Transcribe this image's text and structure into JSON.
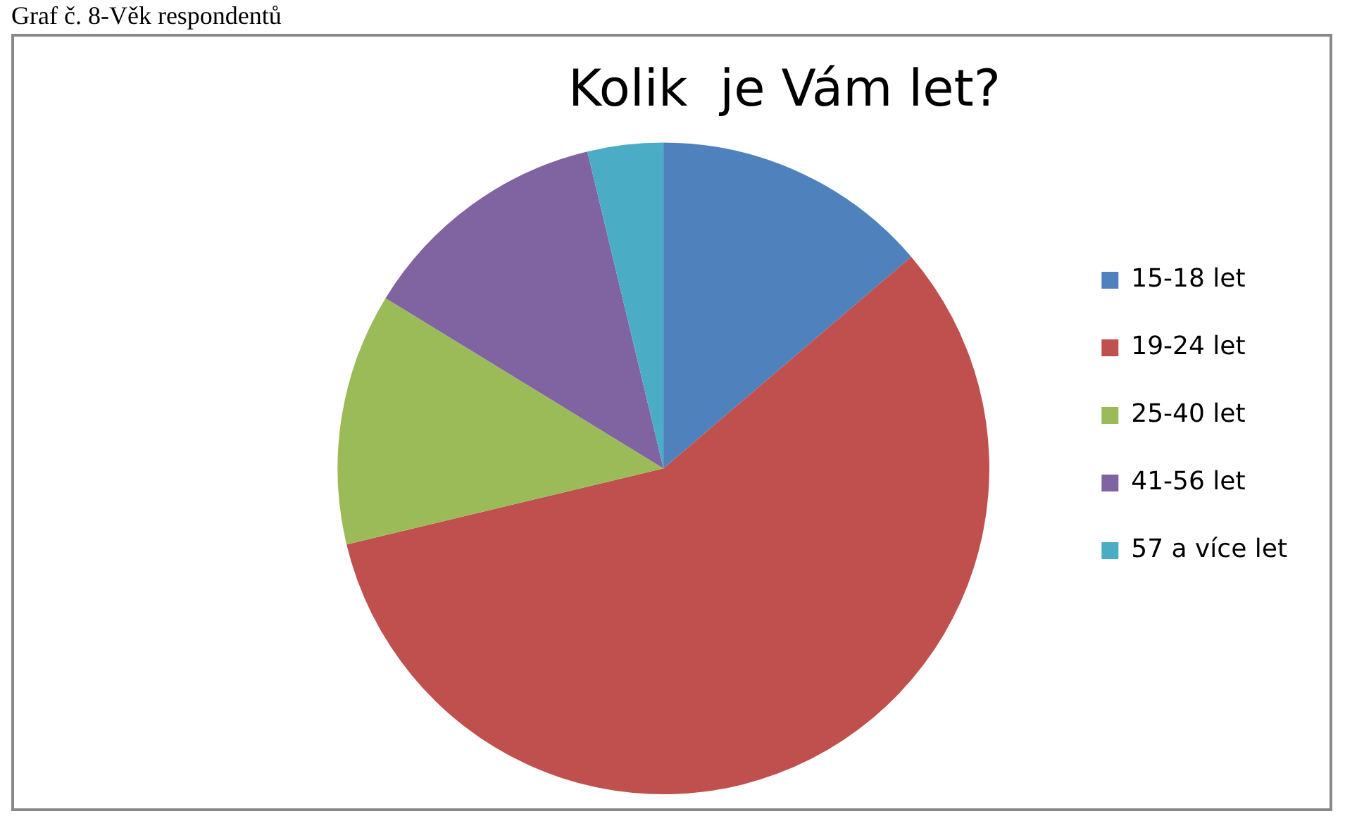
{
  "chart_data": {
    "type": "pie",
    "title": "Kolik  je Vám let?",
    "annotations": [
      "Graf č. 8-Věk respondentů"
    ],
    "categories": [
      "15-18 let",
      "19-24 let",
      "25-40 let",
      "41-56 let",
      "57 a více let"
    ],
    "values": [
      13.75,
      57.5,
      12.5,
      12.5,
      3.75
    ],
    "colors": [
      "#4f81bd",
      "#c0504d",
      "#9bbb59",
      "#8064a2",
      "#4bacc6"
    ],
    "legend": "right"
  }
}
